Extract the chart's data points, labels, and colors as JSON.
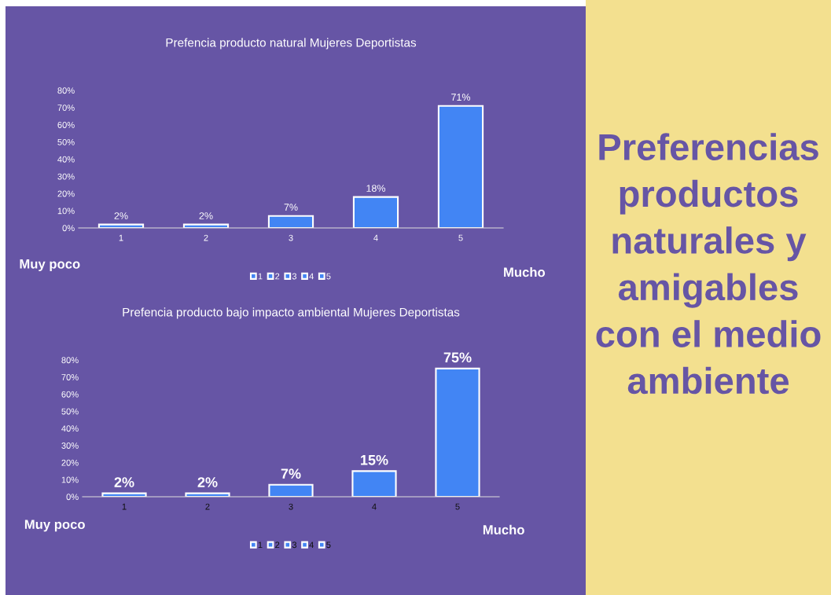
{
  "chart_data": [
    {
      "type": "bar",
      "title": "Prefencia producto natural Mujeres Deportistas",
      "categories": [
        "1",
        "2",
        "3",
        "4",
        "5"
      ],
      "series": [
        {
          "name": "1",
          "color": "#4285f4",
          "values": [
            2,
            null,
            null,
            null,
            null
          ],
          "value_labels": [
            "2%",
            null,
            null,
            null,
            null
          ]
        },
        {
          "name": "2",
          "color": "#4285f4",
          "values": [
            null,
            2,
            null,
            null,
            null
          ],
          "value_labels": [
            null,
            "2%",
            null,
            null,
            null
          ]
        },
        {
          "name": "3",
          "color": "#4285f4",
          "values": [
            null,
            null,
            7,
            null,
            null
          ],
          "value_labels": [
            null,
            null,
            "7%",
            null,
            null
          ]
        },
        {
          "name": "4",
          "color": "#4285f4",
          "values": [
            null,
            null,
            null,
            18,
            null
          ],
          "value_labels": [
            null,
            null,
            null,
            "18%",
            null
          ]
        },
        {
          "name": "5",
          "color": "#4285f4",
          "values": [
            null,
            null,
            null,
            null,
            71
          ],
          "value_labels": [
            null,
            null,
            null,
            null,
            "71%"
          ]
        }
      ],
      "ylim": [
        0,
        80
      ],
      "yticks": [
        {
          "value": 0,
          "label": "0%"
        },
        {
          "value": 10,
          "label": "10%"
        },
        {
          "value": 20,
          "label": "20%"
        },
        {
          "value": 30,
          "label": "30%"
        },
        {
          "value": 40,
          "label": "40%"
        },
        {
          "value": 50,
          "label": "50%"
        },
        {
          "value": 60,
          "label": "60%"
        },
        {
          "value": 70,
          "label": "70%"
        },
        {
          "value": 80,
          "label": "80%"
        }
      ],
      "legend": "bottom",
      "annotations": [
        "Muy poco",
        "Mucho"
      ]
    },
    {
      "type": "bar",
      "title": "Prefencia producto bajo impacto ambiental Mujeres Deportistas",
      "categories": [
        "1",
        "2",
        "3",
        "4",
        "5"
      ],
      "series": [
        {
          "name": "1",
          "color": "#4285f4",
          "values": [
            2,
            null,
            null,
            null,
            null
          ],
          "value_labels": [
            "2%",
            null,
            null,
            null,
            null
          ]
        },
        {
          "name": "2",
          "color": "#4285f4",
          "values": [
            null,
            2,
            null,
            null,
            null
          ],
          "value_labels": [
            null,
            "2%",
            null,
            null,
            null
          ]
        },
        {
          "name": "3",
          "color": "#4285f4",
          "values": [
            null,
            null,
            7,
            null,
            null
          ],
          "value_labels": [
            null,
            null,
            "7%",
            null,
            null
          ]
        },
        {
          "name": "4",
          "color": "#4285f4",
          "values": [
            null,
            null,
            null,
            15,
            null
          ],
          "value_labels": [
            null,
            null,
            null,
            "15%",
            null
          ]
        },
        {
          "name": "5",
          "color": "#4285f4",
          "values": [
            null,
            null,
            null,
            null,
            75
          ],
          "value_labels": [
            null,
            null,
            null,
            null,
            "75%"
          ]
        }
      ],
      "ylim": [
        0,
        80
      ],
      "yticks": [
        {
          "value": 0,
          "label": "0%"
        },
        {
          "value": 10,
          "label": "10%"
        },
        {
          "value": 20,
          "label": "20%"
        },
        {
          "value": 30,
          "label": "30%"
        },
        {
          "value": 40,
          "label": "40%"
        },
        {
          "value": 50,
          "label": "50%"
        },
        {
          "value": 60,
          "label": "60%"
        },
        {
          "value": 70,
          "label": "70%"
        },
        {
          "value": 80,
          "label": "80%"
        }
      ],
      "legend": "bottom",
      "annotations": [
        "Muy poco",
        "Mucho"
      ]
    },
    {
      "type": "other",
      "title": "Preferencias\nproductos\nnaturales y\namigables\ncon el medio\nambiente"
    }
  ]
}
